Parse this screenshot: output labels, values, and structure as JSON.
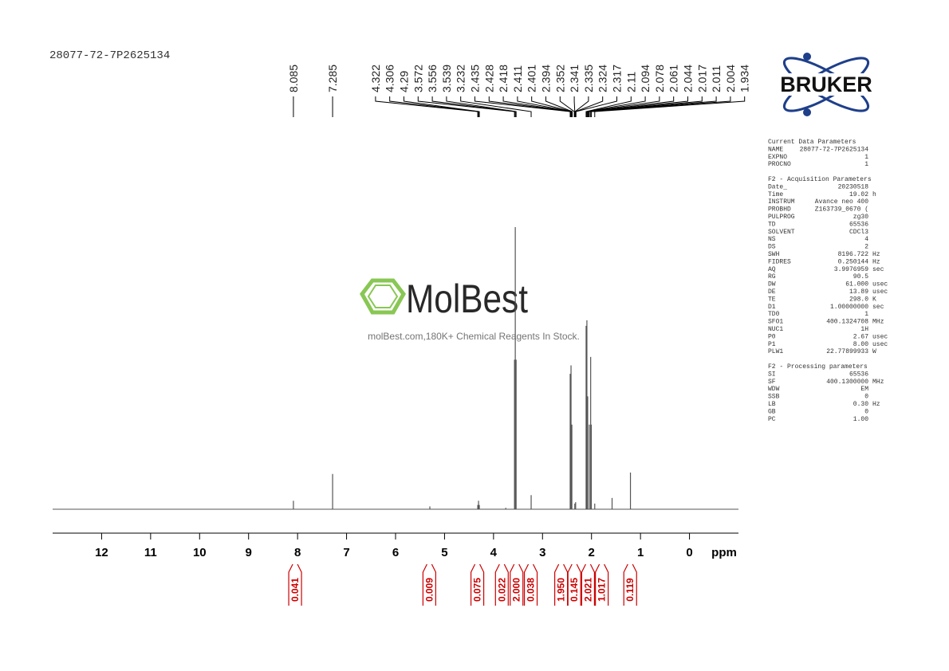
{
  "header": {
    "title": "28077-72-7P2625134"
  },
  "logo": {
    "text": "BRUKER"
  },
  "watermark": {
    "brand": "MolBest",
    "tagline": "molBest.com,180K+ Chemical Reagents In Stock."
  },
  "chart_data": {
    "type": "spectrum",
    "x_label": "ppm",
    "xlim": [
      13,
      -1
    ],
    "xticks": [
      12,
      11,
      10,
      9,
      8,
      7,
      6,
      5,
      4,
      3,
      2,
      1,
      0
    ],
    "ylim": [
      0,
      100
    ],
    "color": "#555555",
    "x": [
      8.085,
      7.285,
      5.3,
      4.322,
      4.306,
      4.29,
      3.75,
      3.572,
      3.556,
      3.539,
      3.232,
      2.435,
      2.418,
      2.401,
      2.341,
      2.324,
      2.11,
      2.094,
      2.078,
      2.044,
      2.017,
      2.004,
      1.934,
      1.58,
      1.205
    ],
    "values": [
      3,
      12.5,
      1,
      1.5,
      3,
      1.5,
      0.5,
      53,
      100,
      53,
      5,
      48,
      51,
      30,
      2,
      2.5,
      65,
      67,
      40,
      30,
      54,
      30,
      2,
      4,
      13
    ],
    "peak_labels": [
      8.085,
      7.285,
      4.322,
      4.306,
      4.29,
      3.572,
      3.556,
      3.539,
      3.232,
      2.435,
      2.428,
      2.418,
      2.411,
      2.401,
      2.394,
      2.352,
      2.341,
      2.335,
      2.324,
      2.317,
      2.11,
      2.094,
      2.078,
      2.061,
      2.044,
      2.017,
      2.011,
      2.004,
      1.934
    ],
    "integrals": {
      "color": "#cc0000",
      "positions": [
        8.05,
        5.31,
        4.33,
        3.83,
        3.53,
        3.24,
        2.62,
        2.35,
        2.07,
        1.79,
        1.21
      ],
      "values": [
        0.041,
        0.009,
        0.075,
        0.022,
        2,
        0.038,
        1.95,
        0.145,
        2.021,
        1.017,
        0.119
      ],
      "value_labels": [
        "0.041",
        "0.009",
        "0.075",
        "0.022",
        "2.000",
        "0.038",
        "1.950",
        "0.145",
        "2.021",
        "1.017",
        "0.119"
      ]
    }
  },
  "parameters": {
    "sections": [
      {
        "heading": "Current Data Parameters",
        "rows": [
          [
            "NAME",
            "28077-72-7P2625134",
            ""
          ],
          [
            "EXPNO",
            "1",
            ""
          ],
          [
            "PROCNO",
            "1",
            ""
          ]
        ]
      },
      {
        "heading": "F2 - Acquisition Parameters",
        "rows": [
          [
            "Date_",
            "20230518",
            ""
          ],
          [
            "Time",
            "19.02",
            "h"
          ],
          [
            "INSTRUM",
            "Avance neo 400",
            ""
          ],
          [
            "PROBHD",
            "Z163739_0670 (",
            ""
          ],
          [
            "PULPROG",
            "zg30",
            ""
          ],
          [
            "TD",
            "65536",
            ""
          ],
          [
            "SOLVENT",
            "CDCl3",
            ""
          ],
          [
            "NS",
            "4",
            ""
          ],
          [
            "DS",
            "2",
            ""
          ],
          [
            "SWH",
            "8196.722",
            "Hz"
          ],
          [
            "FIDRES",
            "0.250144",
            "Hz"
          ],
          [
            "AQ",
            "3.9976959",
            "sec"
          ],
          [
            "RG",
            "90.5",
            ""
          ],
          [
            "DW",
            "61.000",
            "usec"
          ],
          [
            "DE",
            "13.89",
            "usec"
          ],
          [
            "TE",
            "298.0",
            "K"
          ],
          [
            "D1",
            "1.00000000",
            "sec"
          ],
          [
            "TD0",
            "1",
            ""
          ],
          [
            "SFO1",
            "400.1324708",
            "MHz"
          ],
          [
            "NUC1",
            "1H",
            ""
          ],
          [
            "P0",
            "2.67",
            "usec"
          ],
          [
            "P1",
            "8.00",
            "usec"
          ],
          [
            "PLW1",
            "22.77899933",
            "W"
          ]
        ]
      },
      {
        "heading": "F2 - Processing parameters",
        "rows": [
          [
            "SI",
            "65536",
            ""
          ],
          [
            "SF",
            "400.1300000",
            "MHz"
          ],
          [
            "WDW",
            "EM",
            ""
          ],
          [
            "SSB",
            "0",
            ""
          ],
          [
            "LB",
            "0.30",
            "Hz"
          ],
          [
            "GB",
            "0",
            ""
          ],
          [
            "PC",
            "1.00",
            ""
          ]
        ]
      }
    ]
  }
}
